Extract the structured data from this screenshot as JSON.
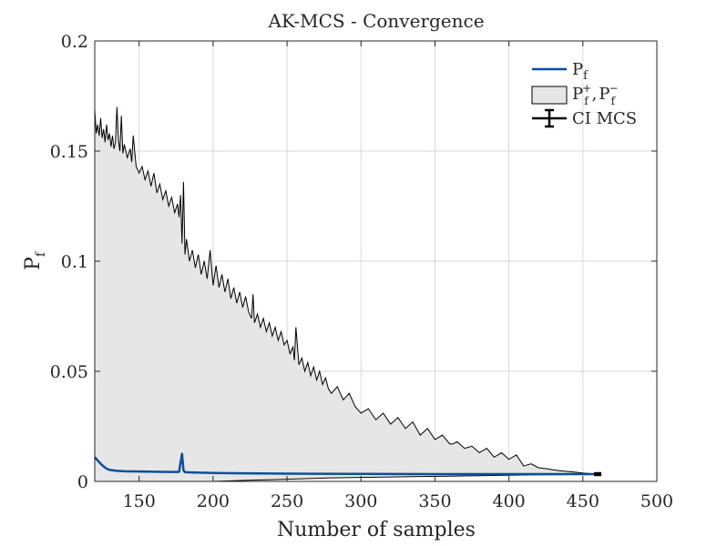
{
  "chart_data": {
    "type": "line",
    "title": "AK-MCS - Convergence",
    "xlabel": "Number of samples",
    "ylabel": "P",
    "ylabel_sub": "f",
    "xlim": [
      120,
      500
    ],
    "ylim": [
      0,
      0.2
    ],
    "xticks": [
      150,
      200,
      250,
      300,
      350,
      400,
      450,
      500
    ],
    "xtick_labels": [
      "150",
      "200",
      "250",
      "300",
      "350",
      "400",
      "450",
      "500"
    ],
    "yticks": [
      0,
      0.05,
      0.1,
      0.15,
      0.2
    ],
    "ytick_labels": [
      "0",
      "0.05",
      "0.1",
      "0.15",
      "0.2"
    ],
    "grid": true,
    "legend_position": "top-right",
    "legend": {
      "pf": {
        "main": "P",
        "sub": "f"
      },
      "bounds": {
        "main1": "P",
        "sub1": "f",
        "sup1": "+",
        "sep": ",",
        "main2": "P",
        "sub2": "f",
        "sup2": "−"
      },
      "ci": {
        "text": "CI MCS"
      }
    },
    "colors": {
      "pf_line": "#0b4f9c",
      "band_fill": "#e6e6e6",
      "band_edge": "#000000",
      "grid": "#d9d9d9",
      "ci": "#000000"
    },
    "series": [
      {
        "name": "Pf",
        "x": [
          120,
          122,
          124,
          126,
          128,
          130,
          135,
          140,
          150,
          160,
          170,
          177,
          178,
          179,
          180,
          181,
          185,
          200,
          250,
          300,
          350,
          400,
          450,
          460
        ],
        "values": [
          0.011,
          0.0095,
          0.008,
          0.0068,
          0.0058,
          0.0052,
          0.0048,
          0.0046,
          0.0045,
          0.0044,
          0.0043,
          0.0043,
          0.0085,
          0.0125,
          0.005,
          0.0042,
          0.0041,
          0.0038,
          0.0035,
          0.0034,
          0.0033,
          0.0033,
          0.0033,
          0.0033
        ]
      },
      {
        "name": "Pf+",
        "x": [
          120,
          121,
          122,
          123,
          124,
          125,
          126,
          127,
          128,
          129,
          130,
          131,
          132,
          133,
          134,
          135,
          136,
          137,
          138,
          139,
          140,
          142,
          144,
          145,
          146,
          148,
          150,
          152,
          154,
          156,
          158,
          160,
          162,
          164,
          166,
          168,
          170,
          172,
          174,
          176,
          177,
          178,
          179,
          180,
          181,
          182,
          184,
          186,
          188,
          190,
          192,
          194,
          196,
          198,
          200,
          202,
          204,
          206,
          208,
          210,
          212,
          214,
          216,
          218,
          220,
          222,
          224,
          226,
          227,
          228,
          230,
          232,
          234,
          236,
          238,
          240,
          242,
          244,
          246,
          248,
          250,
          252,
          254,
          255,
          256,
          258,
          260,
          262,
          264,
          266,
          268,
          270,
          272,
          274,
          276,
          278,
          280,
          284,
          288,
          292,
          296,
          300,
          305,
          310,
          315,
          320,
          325,
          330,
          335,
          340,
          345,
          350,
          355,
          360,
          362,
          365,
          370,
          375,
          380,
          385,
          390,
          395,
          400,
          405,
          408,
          410,
          415,
          420,
          425,
          430,
          435,
          440,
          445,
          450,
          455,
          460
        ],
        "values": [
          0.169,
          0.158,
          0.162,
          0.157,
          0.165,
          0.156,
          0.16,
          0.154,
          0.162,
          0.155,
          0.158,
          0.152,
          0.157,
          0.151,
          0.154,
          0.17,
          0.155,
          0.15,
          0.166,
          0.149,
          0.153,
          0.147,
          0.151,
          0.145,
          0.157,
          0.143,
          0.14,
          0.143,
          0.137,
          0.141,
          0.134,
          0.14,
          0.131,
          0.135,
          0.128,
          0.132,
          0.125,
          0.129,
          0.122,
          0.126,
          0.12,
          0.13,
          0.108,
          0.136,
          0.103,
          0.11,
          0.1,
          0.105,
          0.097,
          0.103,
          0.094,
          0.1,
          0.092,
          0.105,
          0.089,
          0.098,
          0.088,
          0.094,
          0.086,
          0.092,
          0.083,
          0.088,
          0.081,
          0.086,
          0.079,
          0.084,
          0.077,
          0.074,
          0.085,
          0.072,
          0.076,
          0.07,
          0.074,
          0.068,
          0.072,
          0.066,
          0.07,
          0.064,
          0.068,
          0.062,
          0.064,
          0.058,
          0.061,
          0.055,
          0.07,
          0.053,
          0.056,
          0.05,
          0.054,
          0.048,
          0.052,
          0.046,
          0.05,
          0.044,
          0.047,
          0.042,
          0.04,
          0.043,
          0.037,
          0.04,
          0.034,
          0.031,
          0.033,
          0.028,
          0.031,
          0.026,
          0.029,
          0.024,
          0.027,
          0.021,
          0.024,
          0.019,
          0.021,
          0.017,
          0.017,
          0.018,
          0.015,
          0.016,
          0.013,
          0.015,
          0.011,
          0.013,
          0.01,
          0.012,
          0.009,
          0.007,
          0.008,
          0.0062,
          0.0058,
          0.0052,
          0.0048,
          0.0045,
          0.0042,
          0.0038,
          0.0035,
          0.0034
        ]
      },
      {
        "name": "Pf-",
        "x": [
          120,
          150,
          180,
          190,
          200,
          210,
          220,
          230,
          240,
          250,
          260,
          270,
          280,
          300,
          320,
          340,
          360,
          380,
          400,
          420,
          440,
          450,
          460
        ],
        "values": [
          0,
          0,
          0,
          0,
          0,
          0.0002,
          0.0004,
          0.0006,
          0.0008,
          0.001,
          0.0012,
          0.0014,
          0.0016,
          0.0018,
          0.002,
          0.0022,
          0.0024,
          0.0026,
          0.0028,
          0.003,
          0.0031,
          0.0032,
          0.0033
        ]
      }
    ],
    "ci_mcs": {
      "x": 460,
      "low": 0.0029,
      "high": 0.0037
    }
  }
}
